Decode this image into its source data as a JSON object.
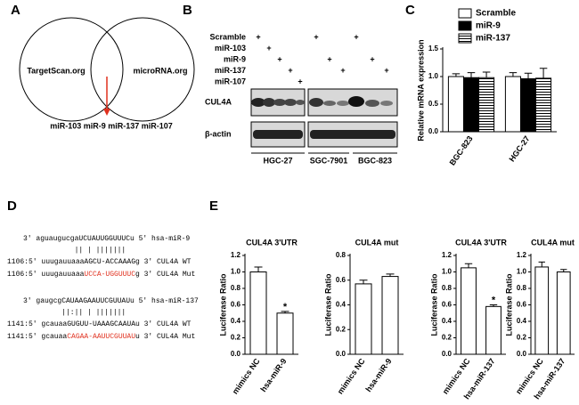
{
  "panels": {
    "a": "A",
    "b": "B",
    "c": "C",
    "d": "D",
    "e": "E"
  },
  "venn": {
    "left": "TargetScan.org",
    "right": "microRNA.org",
    "result": "miR-103 miR-9 miR-137 miR-107"
  },
  "blot": {
    "rows": [
      {
        "label": "Scramble",
        "cells": [
          "+",
          null,
          null,
          null,
          null,
          "+",
          null,
          null,
          "+",
          null,
          null
        ]
      },
      {
        "label": "miR-103",
        "cells": [
          null,
          "+",
          null,
          null,
          null,
          null,
          null,
          null,
          null,
          null,
          null
        ]
      },
      {
        "label": "miR-9",
        "cells": [
          null,
          null,
          "+",
          null,
          null,
          null,
          "+",
          null,
          null,
          "+",
          null
        ]
      },
      {
        "label": "miR-137",
        "cells": [
          null,
          null,
          null,
          "+",
          null,
          null,
          null,
          "+",
          null,
          null,
          "+"
        ]
      },
      {
        "label": "miR-107",
        "cells": [
          null,
          null,
          null,
          null,
          "+",
          null,
          null,
          null,
          null,
          null,
          null
        ]
      }
    ],
    "proteins": [
      "CUL4A",
      "β-actin"
    ],
    "cell_lines": [
      "HGC-27",
      "SGC-7901",
      "BGC-823"
    ]
  },
  "sequences": {
    "mir9": "3' aguaugucgaUCUAUUGGUUUCu 5' hsa-miR-9",
    "pair9": "            || | |||||||",
    "wt9": "1106:5' uuugauuaaaAGCU-ACCAAAGg 3' CUL4A WT",
    "mut9": {
      "prefix": "1106:5' uuugauuaaa",
      "highlight": "UCCA-UGGUUUC",
      "suffix": "g 3' CUL4A Mut"
    },
    "mir137": "3' gaugcgCAUAAGAAUUCGUUAUu 5' hsa-miR-137",
    "pair137": "         ||:|| | |||||||",
    "wt137": "1141:5' gcauaaGUGUU-UAAAGCAAUAu 3' CUL4A WT",
    "mut137": {
      "prefix": "1141:5' gcauaa",
      "highlight": "CAGAA-AAUUCGUUAU",
      "suffix": "u 3' CUL4A Mut"
    }
  },
  "chart_data": [
    {
      "type": "bar",
      "ylabel": "Relative  mRNA expression",
      "categories": [
        "BGC-823",
        "HGC-27"
      ],
      "series": [
        {
          "name": "Scramble",
          "color": "#ffffff",
          "values": [
            1.0,
            1.0
          ],
          "errors": [
            0.05,
            0.07
          ]
        },
        {
          "name": "miR-9",
          "color": "#000000",
          "values": [
            0.98,
            0.96
          ],
          "errors": [
            0.09,
            0.1
          ]
        },
        {
          "name": "miR-137",
          "color": "#ffffff",
          "hatch": true,
          "values": [
            0.98,
            0.97
          ],
          "errors": [
            0.1,
            0.18
          ]
        }
      ],
      "ylim": [
        0,
        1.5
      ],
      "yticks": [
        {
          "value": 0,
          "label": "0.0"
        },
        0.5,
        {
          "value": 1,
          "label": "1.0"
        },
        1.5
      ],
      "grid": false
    },
    {
      "type": "bar",
      "title": "CUL4A 3'UTR",
      "ylabel": "Luciferase Ratio",
      "categories": [
        "mimics NC",
        "hsa-miR-9"
      ],
      "values": [
        1.0,
        0.5
      ],
      "errors": [
        0.06,
        0.02
      ],
      "significance": [
        null,
        "*"
      ],
      "color": "#ffffff",
      "ylim": [
        0,
        1.2
      ],
      "yticks": [
        {
          "value": 0,
          "label": "0.0"
        },
        0.2,
        0.4,
        0.6,
        0.8,
        {
          "value": 1,
          "label": "1.0"
        },
        1.2
      ],
      "grid": false
    },
    {
      "type": "bar",
      "title": "CUL4A mut",
      "ylabel": "Luciferase Ratio",
      "categories": [
        "mimics NC",
        "hsa-miR-9"
      ],
      "values": [
        0.57,
        0.63
      ],
      "errors": [
        0.03,
        0.02
      ],
      "color": "#ffffff",
      "ylim": [
        0,
        0.8
      ],
      "yticks": [
        {
          "value": 0,
          "label": "0.0"
        },
        0.2,
        0.4,
        0.6,
        0.8
      ],
      "grid": false
    },
    {
      "type": "bar",
      "title": "CUL4A 3'UTR",
      "ylabel": "Luciferase Ratio",
      "categories": [
        "mimics NC",
        "hsa-miR-137"
      ],
      "values": [
        1.05,
        0.58
      ],
      "errors": [
        0.05,
        0.02
      ],
      "significance": [
        null,
        "*"
      ],
      "color": "#ffffff",
      "ylim": [
        0,
        1.2
      ],
      "yticks": [
        {
          "value": 0,
          "label": "0.0"
        },
        0.2,
        0.4,
        0.6,
        0.8,
        {
          "value": 1,
          "label": "1.0"
        },
        1.2
      ],
      "grid": false
    },
    {
      "type": "bar",
      "title": "CUL4A mut",
      "ylabel": "Luciferase Ratio",
      "categories": [
        "mimics NC",
        "hsa-miR-137"
      ],
      "values": [
        1.06,
        1.0
      ],
      "errors": [
        0.06,
        0.03
      ],
      "color": "#ffffff",
      "ylim": [
        0,
        1.2
      ],
      "yticks": [
        {
          "value": 0,
          "label": "0.0"
        },
        0.2,
        0.4,
        0.6,
        0.8,
        {
          "value": 1,
          "label": "1.0"
        },
        1.2
      ],
      "grid": false
    }
  ]
}
